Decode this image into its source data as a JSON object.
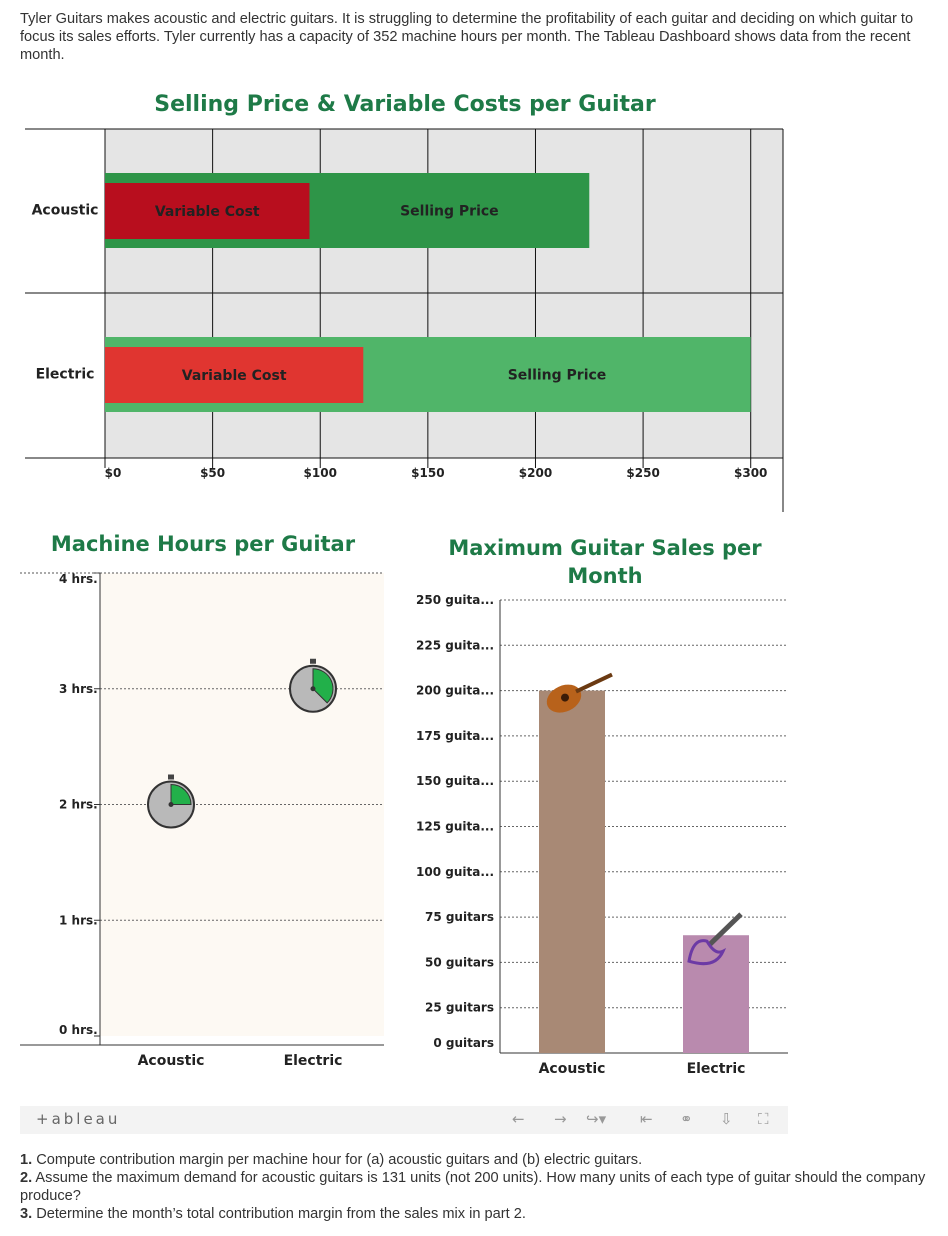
{
  "intro": "Tyler Guitars makes acoustic and electric guitars. It is struggling to determine the profitability of each guitar and deciding on which guitar to focus its sales efforts. Tyler currently has a capacity of 352 machine hours per month. The Tableau Dashboard shows data from the recent month.",
  "chart_data": [
    {
      "type": "bar",
      "title": "Selling Price & Variable Costs per Guitar",
      "orientation": "horizontal",
      "categories": [
        "Acoustic",
        "Electric"
      ],
      "series": [
        {
          "name": "Selling Price",
          "values": [
            225,
            300
          ]
        },
        {
          "name": "Variable Cost",
          "values": [
            95,
            120
          ]
        }
      ],
      "xlim": [
        0,
        315
      ],
      "xticks": [
        "$0",
        "$50",
        "$100",
        "$150",
        "$200",
        "$250",
        "$300"
      ],
      "xtick_values": [
        0,
        50,
        100,
        150,
        200,
        250,
        300
      ],
      "grid": true,
      "colors": {
        "Acoustic": {
          "Variable Cost": "#b80e1e",
          "Selling Price": "#2e9548"
        },
        "Electric": {
          "Variable Cost": "#e03530",
          "Selling Price": "#50b569"
        }
      }
    },
    {
      "type": "scatter",
      "title": "Machine Hours per Guitar",
      "categories": [
        "Acoustic",
        "Electric"
      ],
      "values": [
        2,
        3
      ],
      "ylim": [
        0,
        4
      ],
      "yticks": [
        "0 hrs.",
        "1 hrs.",
        "2 hrs.",
        "3 hrs.",
        "4 hrs."
      ],
      "ytick_values": [
        0,
        1,
        2,
        3,
        4
      ],
      "grid": true,
      "marker": "stopwatch-icon",
      "background": "#fdf9f3"
    },
    {
      "type": "bar",
      "title": "Maximum Guitar Sales per Month",
      "categories": [
        "Acoustic",
        "Electric"
      ],
      "values": [
        200,
        65
      ],
      "ylim": [
        0,
        250
      ],
      "yticks": [
        "0 guitars",
        "25 guitars",
        "50 guitars",
        "75 guitars",
        "100 guita...",
        "125 guita...",
        "150 guita...",
        "175 guita...",
        "200 guita...",
        "225 guita...",
        "250 guita..."
      ],
      "ytick_values": [
        0,
        25,
        50,
        75,
        100,
        125,
        150,
        175,
        200,
        225,
        250
      ],
      "grid": true,
      "colors": {
        "Acoustic": "#a88975",
        "Electric": "#b98aae"
      },
      "markers": [
        "acoustic-guitar-icon",
        "electric-guitar-icon"
      ]
    }
  ],
  "toolbar": {
    "logo": "+ableau",
    "icons": [
      "undo-icon",
      "redo-icon",
      "revert-icon",
      "reset-icon",
      "share-icon",
      "download-icon",
      "fullscreen-icon"
    ]
  },
  "questions": [
    {
      "num": "1.",
      "text": " Compute contribution margin per machine hour for (a) acoustic guitars and (b) electric guitars."
    },
    {
      "num": "2.",
      "text": " Assume the maximum demand for acoustic guitars is 131 units (not 200 units). How many units of each type of guitar should the company produce?"
    },
    {
      "num": "3.",
      "text": " Determine the month’s total contribution margin from the sales mix in part 2."
    }
  ]
}
